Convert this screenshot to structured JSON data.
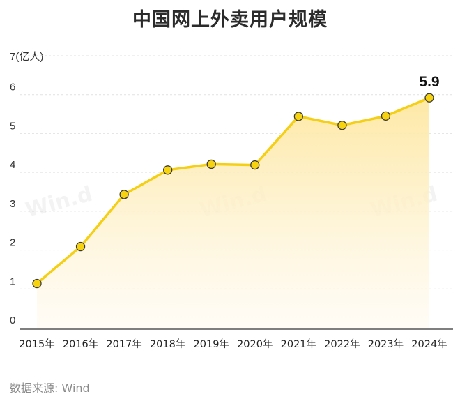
{
  "chart_data": {
    "type": "area",
    "title": "中国网上外卖用户规模",
    "unit_label": "(亿人)",
    "categories": [
      "2015年",
      "2016年",
      "2017年",
      "2018年",
      "2019年",
      "2020年",
      "2021年",
      "2022年",
      "2023年",
      "2024年"
    ],
    "values": [
      1.14,
      2.09,
      3.43,
      4.06,
      4.21,
      4.19,
      5.44,
      5.21,
      5.45,
      5.92
    ],
    "highlight_label": "5.9",
    "ylim": [
      0,
      7
    ],
    "yticks": [
      "0",
      "1",
      "2",
      "3",
      "4",
      "5",
      "6",
      "7"
    ],
    "grid": true,
    "colors": {
      "line": "#f5cf14",
      "marker_fill": "#f6d20f",
      "marker_stroke": "#3a3a3a",
      "area_top": "#fde7a0",
      "area_bottom": "#fffaf0"
    }
  },
  "watermark": "Win.d",
  "source": "数据来源: Wind"
}
